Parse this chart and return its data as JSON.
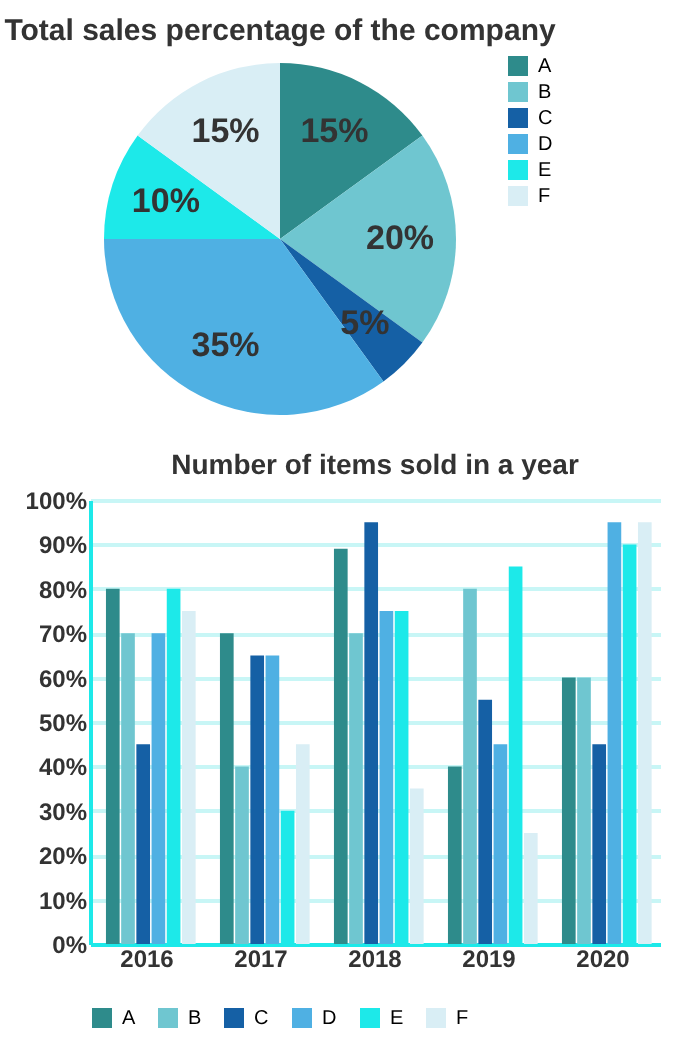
{
  "chart_data": [
    {
      "type": "pie",
      "title": "Total sales percentage of the company",
      "categories": [
        "A",
        "B",
        "C",
        "D",
        "E",
        "F"
      ],
      "values": [
        15,
        20,
        5,
        35,
        10,
        15
      ],
      "colors": [
        "#2e8b8b",
        "#6fc6d0",
        "#1560a5",
        "#4fb0e3",
        "#1de9e9",
        "#d9eef5"
      ],
      "value_labels": [
        "15%",
        "20%",
        "5%",
        "35%",
        "10%",
        "15%"
      ],
      "legend": "right"
    },
    {
      "type": "bar",
      "title": "Number of items sold in a year",
      "categories": [
        "2016",
        "2017",
        "2018",
        "2019",
        "2020"
      ],
      "series": [
        {
          "name": "A",
          "color": "#2e8b8b",
          "values": [
            80,
            70,
            89,
            40,
            60
          ]
        },
        {
          "name": "B",
          "color": "#6fc6d0",
          "values": [
            70,
            40,
            70,
            80,
            60
          ]
        },
        {
          "name": "C",
          "color": "#1560a5",
          "values": [
            45,
            65,
            95,
            55,
            45
          ]
        },
        {
          "name": "D",
          "color": "#4fb0e3",
          "values": [
            70,
            65,
            75,
            45,
            95
          ]
        },
        {
          "name": "E",
          "color": "#1de9e9",
          "values": [
            80,
            30,
            75,
            85,
            90
          ]
        },
        {
          "name": "F",
          "color": "#d9eef5",
          "values": [
            75,
            45,
            35,
            25,
            95
          ]
        }
      ],
      "ylim": [
        0,
        100
      ],
      "yticks": [
        {
          "value": 0,
          "label": "0%"
        },
        {
          "value": 10,
          "label": "10%"
        },
        {
          "value": 20,
          "label": "20%"
        },
        {
          "value": 30,
          "label": "30%"
        },
        {
          "value": 40,
          "label": "40%"
        },
        {
          "value": 50,
          "label": "50%"
        },
        {
          "value": 60,
          "label": "60%"
        },
        {
          "value": 70,
          "label": "70%"
        },
        {
          "value": 80,
          "label": "80%"
        },
        {
          "value": 90,
          "label": "90%"
        },
        {
          "value": 100,
          "label": "100%"
        }
      ],
      "grid": "y",
      "legend": "bottom"
    }
  ]
}
